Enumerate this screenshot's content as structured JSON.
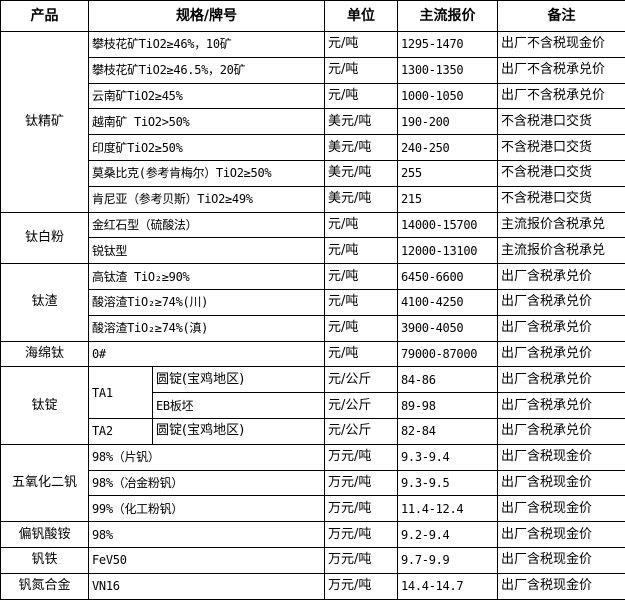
{
  "headers": {
    "product": "产品",
    "spec": "规格/牌号",
    "unit": "单位",
    "price": "主流报价",
    "note": "备注"
  },
  "groups": [
    {
      "product": "钛精矿",
      "rows": [
        {
          "spec": "攀枝花矿TiO2≥46%，10矿",
          "unit": "元/吨",
          "price": "1295-1470",
          "note": "出厂不含税现金价"
        },
        {
          "spec": "攀枝花矿TiO2≥46.5%，20矿",
          "unit": "元/吨",
          "price": "1300-1350",
          "note": "出厂不含税承兑价"
        },
        {
          "spec": "云南矿TiO2≥45%",
          "unit": "元/吨",
          "price": "1000-1050",
          "note": "出厂不含税承兑价"
        },
        {
          "spec": "越南矿 TiO2>50%",
          "unit": "美元/吨",
          "price": "190-200",
          "note": "不含税港口交货"
        },
        {
          "spec": "印度矿TiO2≥50%",
          "unit": "美元/吨",
          "price": "240-250",
          "note": "不含税港口交货"
        },
        {
          "spec": "莫桑比克(参考肯梅尔）TiO2≥50%",
          "unit": "美元/吨",
          "price": "255",
          "note": "不含税港口交货"
        },
        {
          "spec": "肯尼亚（参考贝斯）TiO2≥49%",
          "unit": "美元/吨",
          "price": "215",
          "note": "不含税港口交货"
        }
      ]
    },
    {
      "product": "钛白粉",
      "rows": [
        {
          "spec": "金红石型（硫酸法）",
          "unit": "元/吨",
          "price": "14000-15700",
          "note": "主流报价含税承兑"
        },
        {
          "spec": "锐钛型",
          "unit": "元/吨",
          "price": "12000-13100",
          "note": "主流报价含税承兑"
        }
      ]
    },
    {
      "product": "钛渣",
      "rows": [
        {
          "spec": "高钛渣 TiO₂≥90%",
          "unit": "元/吨",
          "price": "6450-6600",
          "note": "出厂含税承兑价"
        },
        {
          "spec": "酸溶渣TiO₂≥74%(川)",
          "unit": "元/吨",
          "price": "4100-4250",
          "note": "出厂含税承兑价"
        },
        {
          "spec": "酸溶渣TiO₂≥74%(滇)",
          "unit": "元/吨",
          "price": "3900-4050",
          "note": "出厂含税承兑价"
        }
      ]
    },
    {
      "product": "海绵钛",
      "rows": [
        {
          "spec": "0#",
          "unit": "元/吨",
          "price": "79000-87000",
          "note": "出厂含税承兑价"
        }
      ]
    }
  ],
  "ingot": {
    "product": "钛锭",
    "grade1": "TA1",
    "grade2": "TA2",
    "rows": [
      {
        "spec": "圆锭(宝鸡地区)",
        "unit": "元/公斤",
        "price": "84-86",
        "note": "出厂含税承兑价"
      },
      {
        "spec": "EB板坯",
        "unit": "元/公斤",
        "price": "89-98",
        "note": "出厂含税承兑价"
      },
      {
        "spec": "圆锭(宝鸡地区)",
        "unit": "元/公斤",
        "price": "82-84",
        "note": "出厂含税承兑价"
      }
    ]
  },
  "groups2": [
    {
      "product": "五氧化二钒",
      "rows": [
        {
          "spec": "98%（片钒）",
          "unit": "万元/吨",
          "price": "9.3-9.4",
          "note": "出厂含税现金价"
        },
        {
          "spec": "98%（冶金粉钒）",
          "unit": "万元/吨",
          "price": "9.3-9.5",
          "note": "出厂含税现金价"
        },
        {
          "spec": "99%（化工粉钒）",
          "unit": "万元/吨",
          "price": "11.4-12.4",
          "note": "出厂含税现金价"
        }
      ]
    },
    {
      "product": "偏钒酸铵",
      "rows": [
        {
          "spec": "98%",
          "unit": "万元/吨",
          "price": "9.2-9.4",
          "note": "出厂含税现金价"
        }
      ]
    },
    {
      "product": "钒铁",
      "rows": [
        {
          "spec": "FeV50",
          "unit": "万元/吨",
          "price": "9.7-9.9",
          "note": "出厂含税现金价"
        }
      ]
    },
    {
      "product": "钒氮合金",
      "rows": [
        {
          "spec": "VN16",
          "unit": "万元/吨",
          "price": "14.4-14.7",
          "note": "出厂含税现金价"
        }
      ]
    }
  ]
}
